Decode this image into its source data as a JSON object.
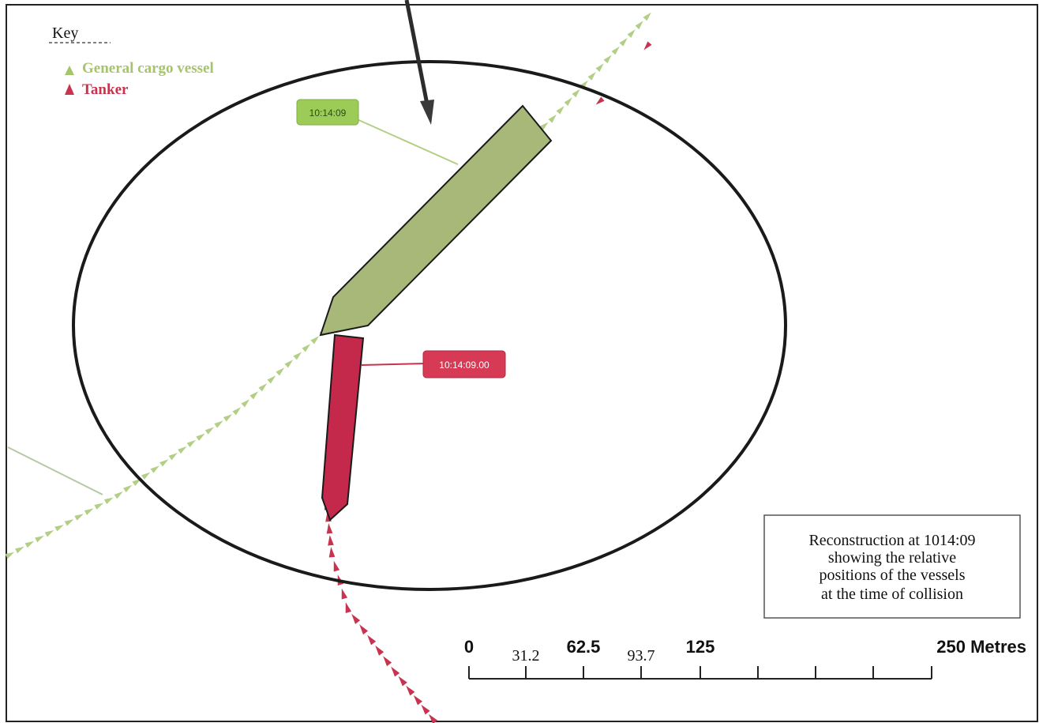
{
  "legend": {
    "title": "Key",
    "items": [
      {
        "label": "General cargo vessel",
        "color": "#a6c46c",
        "marker": "triangle-icon"
      },
      {
        "label": "Tanker",
        "color": "#c8334f",
        "marker": "triangle-icon"
      }
    ]
  },
  "vessels": {
    "cargo": {
      "time_label": "10:14:09",
      "hull_color": "#a8b879",
      "label_bg": "#9ccc57",
      "track_color": "#b3cf86"
    },
    "tanker": {
      "time_label": "10:14:09.00",
      "hull_color": "#c4284a",
      "label_bg": "#d63a55",
      "track_color": "#c8334f"
    }
  },
  "note": {
    "lines": [
      "Reconstruction at 1014:09",
      "showing the relative",
      "positions of the vessels",
      "at the time of collision"
    ]
  },
  "scale_bar": {
    "labels": [
      "0",
      "31.2",
      "62.5",
      "93.7",
      "125",
      "250 Metres"
    ]
  }
}
